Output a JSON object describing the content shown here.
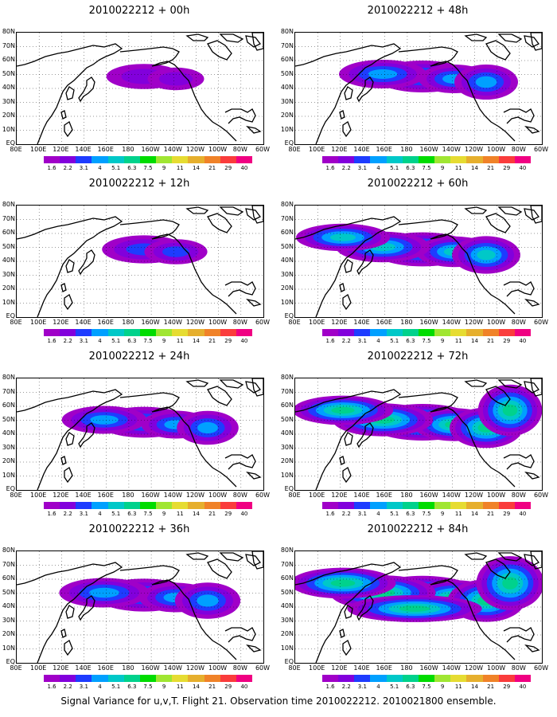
{
  "panels": [
    {
      "title": "2010022212 + 00h",
      "level": 0.15,
      "id": "00h"
    },
    {
      "title": "2010022212 + 12h",
      "level": 0.3,
      "id": "12h"
    },
    {
      "title": "2010022212 + 24h",
      "level": 0.45,
      "id": "24h"
    },
    {
      "title": "2010022212 + 36h",
      "level": 0.55,
      "id": "36h"
    },
    {
      "title": "2010022212 + 48h",
      "level": 0.5,
      "id": "48h"
    },
    {
      "title": "2010022212 + 60h",
      "level": 0.62,
      "id": "60h"
    },
    {
      "title": "2010022212 + 72h",
      "level": 0.75,
      "id": "72h"
    },
    {
      "title": "2010022212 + 84h",
      "level": 0.85,
      "id": "84h"
    }
  ],
  "lat_labels": [
    "80N",
    "70N",
    "60N",
    "50N",
    "40N",
    "30N",
    "20N",
    "10N",
    "EQ"
  ],
  "lon_labels": [
    "80E",
    "100E",
    "120E",
    "140E",
    "160E",
    "180",
    "160W",
    "140W",
    "120W",
    "100W",
    "80W",
    "60W"
  ],
  "colorbar": {
    "labels": [
      "1.6",
      "2.2",
      "3.1",
      "4",
      "5.1",
      "6.3",
      "7.5",
      "9",
      "11",
      "14",
      "21",
      "29",
      "40"
    ],
    "colors": [
      "#a000c8",
      "#8200dc",
      "#1e3cff",
      "#00a0ff",
      "#00c8c8",
      "#00d28c",
      "#00dc00",
      "#a0e632",
      "#e6dc32",
      "#e6af2d",
      "#f08228",
      "#fa3c3c",
      "#f00082"
    ]
  },
  "caption": "Signal Variance for u,v,T. Flight 21. Observation time 2010022212. 2010021800 ensemble."
}
